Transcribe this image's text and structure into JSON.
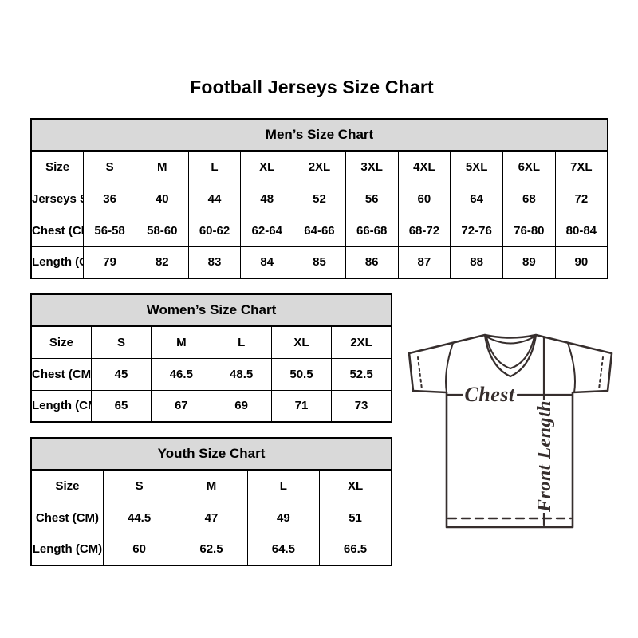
{
  "page": {
    "title": "Football Jerseys Size Chart",
    "background_color": "#ffffff",
    "table_header_bg": "#d9d9d9",
    "table_border_color": "#000000",
    "diagram_line_color": "#362e2d"
  },
  "tables": {
    "mens": {
      "header": "Men’s Size Chart",
      "rows": [
        [
          "Size",
          "S",
          "M",
          "L",
          "XL",
          "2XL",
          "3XL",
          "4XL",
          "5XL",
          "6XL",
          "7XL"
        ],
        [
          "Jerseys Size",
          "36",
          "40",
          "44",
          "48",
          "52",
          "56",
          "60",
          "64",
          "68",
          "72"
        ],
        [
          "Chest (CM)",
          "56-58",
          "58-60",
          "60-62",
          "62-64",
          "64-66",
          "66-68",
          "68-72",
          "72-76",
          "76-80",
          "80-84"
        ],
        [
          "Length (CM)",
          "79",
          "82",
          "83",
          "84",
          "85",
          "86",
          "87",
          "88",
          "89",
          "90"
        ]
      ]
    },
    "womens": {
      "header": "Women’s Size Chart",
      "rows": [
        [
          "Size",
          "S",
          "M",
          "L",
          "XL",
          "2XL"
        ],
        [
          "Chest (CM)",
          "45",
          "46.5",
          "48.5",
          "50.5",
          "52.5"
        ],
        [
          "Length (CM)",
          "65",
          "67",
          "69",
          "71",
          "73"
        ]
      ]
    },
    "youth": {
      "header": "Youth Size Chart",
      "rows": [
        [
          "Size",
          "S",
          "M",
          "L",
          "XL"
        ],
        [
          "Chest (CM)",
          "44.5",
          "47",
          "49",
          "51"
        ],
        [
          "Length (CM)",
          "60",
          "62.5",
          "64.5",
          "66.5"
        ]
      ]
    }
  },
  "diagram": {
    "chest_label": "Chest",
    "front_length_label": "Front Length"
  }
}
